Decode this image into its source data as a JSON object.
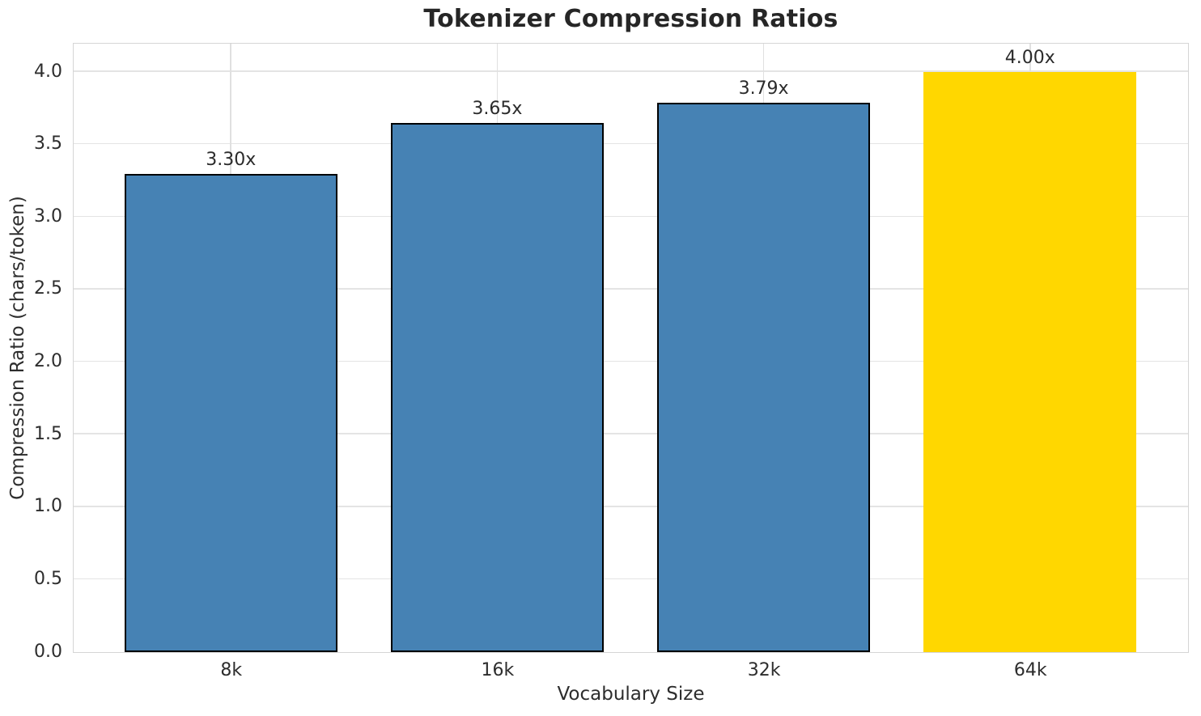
{
  "figure": {
    "title": "Tokenizer Compression Ratios",
    "x_axis_label": "Vocabulary Size",
    "y_axis_label": "Compression Ratio (chars/token)"
  },
  "chart_data": {
    "type": "bar",
    "title": "Tokenizer Compression Ratios",
    "xlabel": "Vocabulary Size",
    "ylabel": "Compression Ratio (chars/token)",
    "categories": [
      "8k",
      "16k",
      "32k",
      "64k"
    ],
    "values": [
      3.3,
      3.65,
      3.79,
      4.0
    ],
    "bar_labels": [
      "3.30x",
      "3.65x",
      "3.79x",
      "4.00x"
    ],
    "bar_colors": [
      "#4682B4",
      "#4682B4",
      "#4682B4",
      "#FFD700"
    ],
    "bar_edge_colors": [
      "#000000",
      "#000000",
      "#000000",
      "none"
    ],
    "highlighted_category": "64k",
    "yticks": [
      0.0,
      0.5,
      1.0,
      1.5,
      2.0,
      2.5,
      3.0,
      3.5,
      4.0
    ],
    "ytick_labels": [
      "0.0",
      "0.5",
      "1.0",
      "1.5",
      "2.0",
      "2.5",
      "3.0",
      "3.5",
      "4.0"
    ],
    "ylim": [
      0,
      4.19
    ],
    "grid": true,
    "legend_position": "none"
  },
  "colors": {
    "background": "#ffffff",
    "grid": "#e4e4e4",
    "spine": "#d5d5d5",
    "text": "#2d2d2d",
    "title_text": "#262626"
  }
}
